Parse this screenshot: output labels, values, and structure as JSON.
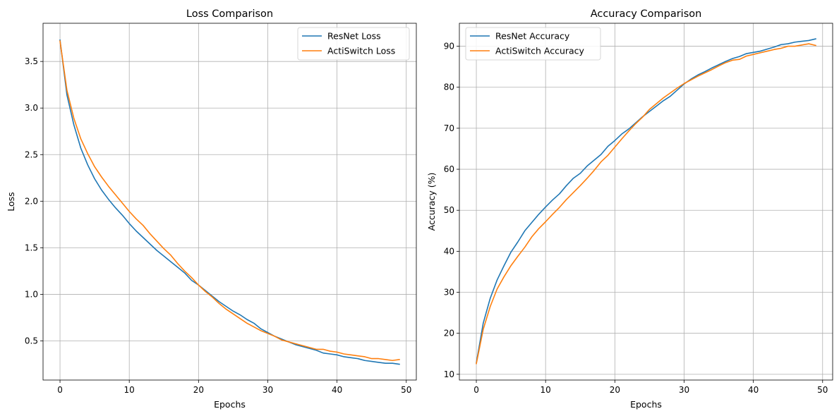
{
  "chart_data": [
    {
      "type": "line",
      "title": "Loss Comparison",
      "xlabel": "Epochs",
      "ylabel": "Loss",
      "xlim": [
        -2.45,
        51.45
      ],
      "ylim": [
        0.08,
        3.91
      ],
      "xticks": [
        0,
        10,
        20,
        30,
        40,
        50
      ],
      "yticks": [
        0.5,
        1.0,
        1.5,
        2.0,
        2.5,
        3.0,
        3.5
      ],
      "ytick_labels": [
        "0.5",
        "1.0",
        "1.5",
        "2.0",
        "2.5",
        "3.0",
        "3.5"
      ],
      "grid": true,
      "legend_position": "upper-right",
      "x": [
        0,
        1,
        2,
        3,
        4,
        5,
        6,
        7,
        8,
        9,
        10,
        11,
        12,
        13,
        14,
        15,
        16,
        17,
        18,
        19,
        20,
        21,
        22,
        23,
        24,
        25,
        26,
        27,
        28,
        29,
        30,
        31,
        32,
        33,
        34,
        35,
        36,
        37,
        38,
        39,
        40,
        41,
        42,
        43,
        44,
        45,
        46,
        47,
        48,
        49
      ],
      "series": [
        {
          "name": "ResNet Loss",
          "color": "#1f77b4",
          "values": [
            3.73,
            3.14,
            2.82,
            2.57,
            2.39,
            2.24,
            2.12,
            2.02,
            1.93,
            1.85,
            1.76,
            1.68,
            1.61,
            1.54,
            1.47,
            1.41,
            1.35,
            1.29,
            1.23,
            1.15,
            1.1,
            1.04,
            0.98,
            0.92,
            0.87,
            0.82,
            0.78,
            0.73,
            0.69,
            0.63,
            0.59,
            0.55,
            0.52,
            0.49,
            0.46,
            0.44,
            0.42,
            0.4,
            0.37,
            0.36,
            0.35,
            0.33,
            0.32,
            0.31,
            0.29,
            0.28,
            0.27,
            0.26,
            0.26,
            0.25
          ]
        },
        {
          "name": "ActiSwitch Loss",
          "color": "#ff7f0e",
          "values": [
            3.72,
            3.19,
            2.89,
            2.67,
            2.51,
            2.37,
            2.26,
            2.16,
            2.07,
            1.98,
            1.89,
            1.81,
            1.74,
            1.65,
            1.57,
            1.49,
            1.42,
            1.33,
            1.25,
            1.18,
            1.1,
            1.03,
            0.97,
            0.9,
            0.84,
            0.79,
            0.74,
            0.69,
            0.65,
            0.61,
            0.58,
            0.55,
            0.51,
            0.49,
            0.47,
            0.45,
            0.43,
            0.41,
            0.41,
            0.39,
            0.38,
            0.36,
            0.35,
            0.34,
            0.33,
            0.31,
            0.31,
            0.3,
            0.29,
            0.3
          ]
        }
      ]
    },
    {
      "type": "line",
      "title": "Accuracy Comparison",
      "xlabel": "Epochs",
      "ylabel": "Accuracy (%)",
      "xlim": [
        -2.45,
        51.45
      ],
      "ylim": [
        8.6,
        95.6
      ],
      "xticks": [
        0,
        10,
        20,
        30,
        40,
        50
      ],
      "yticks": [
        10,
        20,
        30,
        40,
        50,
        60,
        70,
        80,
        90
      ],
      "ytick_labels": [
        "10",
        "20",
        "30",
        "40",
        "50",
        "60",
        "70",
        "80",
        "90"
      ],
      "grid": true,
      "legend_position": "upper-left",
      "x": [
        0,
        1,
        2,
        3,
        4,
        5,
        6,
        7,
        8,
        9,
        10,
        11,
        12,
        13,
        14,
        15,
        16,
        17,
        18,
        19,
        20,
        21,
        22,
        23,
        24,
        25,
        26,
        27,
        28,
        29,
        30,
        31,
        32,
        33,
        34,
        35,
        36,
        37,
        38,
        39,
        40,
        41,
        42,
        43,
        44,
        45,
        46,
        47,
        48,
        49
      ],
      "series": [
        {
          "name": "ResNet Accuracy",
          "color": "#1f77b4",
          "values": [
            12.8,
            22.5,
            28.5,
            33.0,
            36.5,
            39.8,
            42.3,
            45.0,
            47.0,
            49.0,
            50.8,
            52.5,
            54.0,
            56.0,
            57.8,
            59.0,
            60.8,
            62.2,
            63.6,
            65.6,
            67.0,
            68.6,
            69.8,
            71.3,
            72.8,
            74.1,
            75.4,
            76.7,
            77.8,
            79.3,
            80.8,
            82.0,
            83.0,
            83.8,
            84.7,
            85.5,
            86.3,
            87.0,
            87.5,
            88.2,
            88.5,
            88.8,
            89.3,
            89.8,
            90.4,
            90.6,
            91.0,
            91.2,
            91.4,
            91.8
          ]
        },
        {
          "name": "ActiSwitch Accuracy",
          "color": "#ff7f0e",
          "values": [
            12.6,
            21.0,
            26.5,
            30.8,
            33.8,
            36.5,
            38.8,
            41.0,
            43.5,
            45.5,
            47.2,
            49.0,
            50.7,
            52.6,
            54.3,
            56.0,
            57.8,
            59.7,
            61.8,
            63.4,
            65.4,
            67.4,
            69.3,
            71.1,
            72.7,
            74.6,
            76.0,
            77.4,
            78.6,
            79.8,
            80.9,
            81.8,
            82.7,
            83.5,
            84.3,
            85.2,
            86.0,
            86.6,
            86.8,
            87.6,
            88.0,
            88.4,
            88.8,
            89.2,
            89.5,
            90.0,
            90.0,
            90.3,
            90.6,
            90.2
          ]
        }
      ]
    }
  ]
}
